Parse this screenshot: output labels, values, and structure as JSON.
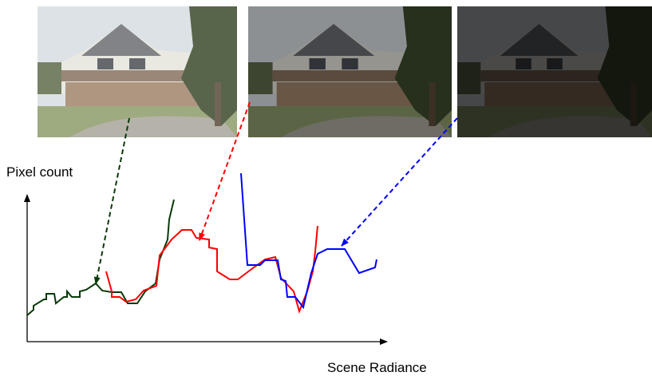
{
  "axis_labels": {
    "y": "Pixel count",
    "x": "Scene Radiance"
  }
}
